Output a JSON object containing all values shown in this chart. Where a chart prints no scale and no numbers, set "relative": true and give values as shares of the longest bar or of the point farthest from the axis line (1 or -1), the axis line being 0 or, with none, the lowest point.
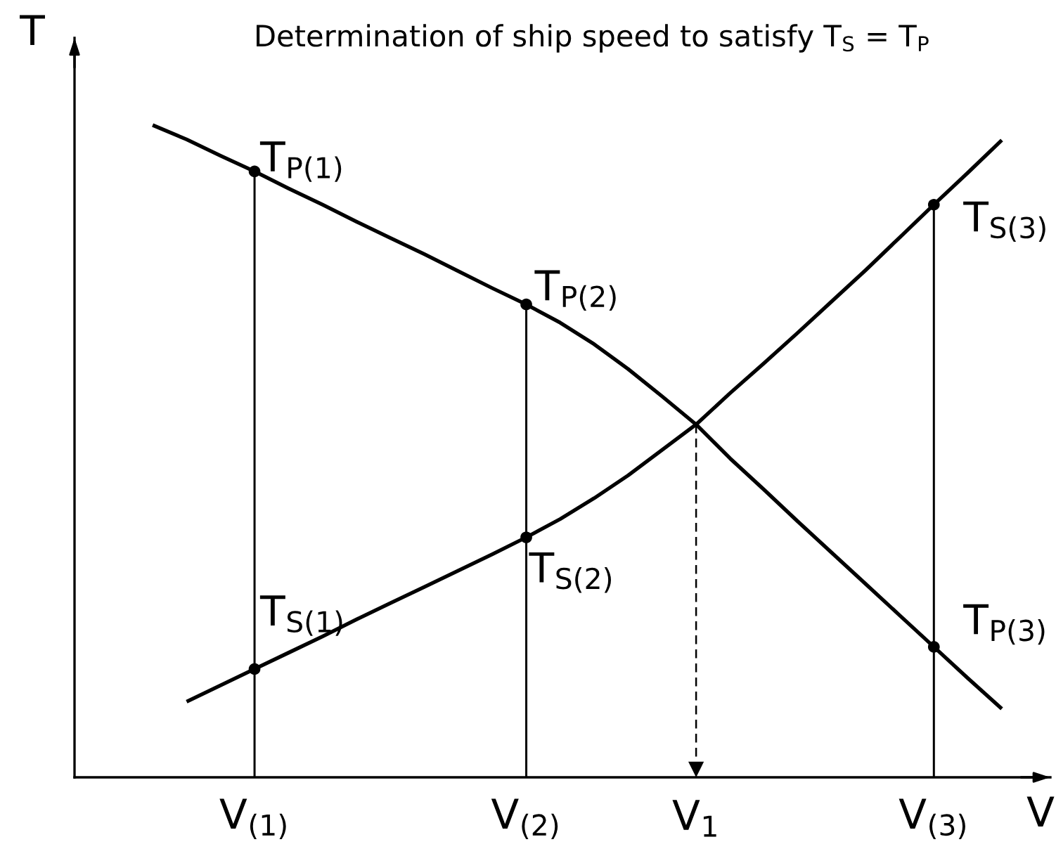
{
  "chart_data": {
    "type": "line",
    "title": "Determination of ship speed to satisfy T$_{S}$ = T$_{P}$",
    "xlabel": "V",
    "ylabel": "T",
    "relative": true,
    "tick_labels": "x",
    "categories": [
      null,
      null,
      null,
      "V$_{(1)}$",
      null,
      null,
      null,
      null,
      null,
      null,
      null,
      "V$_{(2)}$",
      null,
      null,
      null,
      null,
      "V$_{1}$",
      null,
      null,
      null,
      null,
      null,
      null,
      "V$_{(3)}$",
      null,
      null
    ],
    "series": [
      {
        "color": "#000000",
        "values": [
          1.0,
          0.978,
          0.953,
          0.929,
          0.903,
          0.878,
          0.852,
          0.827,
          0.802,
          0.776,
          0.75,
          0.725,
          0.697,
          0.664,
          0.626,
          0.584,
          0.541,
          0.489,
          0.441,
          0.392,
          0.344,
          0.296,
          0.248,
          0.2,
          0.152,
          0.105
        ]
      },
      {
        "color": "#000000",
        "values": [
          null,
          0.116,
          0.141,
          0.166,
          0.191,
          0.216,
          0.242,
          0.267,
          0.292,
          0.317,
          0.342,
          0.368,
          0.396,
          0.428,
          0.463,
          0.502,
          0.541,
          0.589,
          0.635,
          0.682,
          0.73,
          0.778,
          0.828,
          0.878,
          0.927,
          0.977
        ]
      },
      {
        "type": "lollipop",
        "color": "#000000",
        "marker": "circle",
        "values": [
          null,
          null,
          null,
          0.929,
          null,
          null,
          null,
          null,
          null,
          null,
          null,
          0.725,
          null,
          null,
          null,
          null,
          null,
          null,
          null,
          null,
          null,
          null,
          null,
          0.878,
          null,
          null
        ]
      },
      {
        "type": "line",
        "color": "#000000",
        "line_style": "dashed",
        "x": [
          "V$_{1}$",
          "V$_{1}$"
        ],
        "values": [
          0.541,
          0
        ]
      },
      {
        "type": "scatter",
        "color": "#000000",
        "marker": "circle",
        "x": [
          "V$_{(1)}$",
          "V$_{(2)}$",
          "V$_{(3)}$"
        ],
        "values": [
          0.166,
          0.368,
          0.2
        ]
      }
    ],
    "annotations": [
      {
        "text": "T$_{P(1)}$",
        "x": "V$_{(1)}$",
        "y": 0.929
      },
      {
        "text": "T$_{P(2)}$",
        "x": "V$_{(2)}$",
        "y": 0.725
      },
      {
        "text": "T$_{S(3)}$",
        "x": "V$_{(3)}$",
        "y": 0.878
      },
      {
        "text": "T$_{S(1)}$",
        "x": "V$_{(1)}$",
        "y": 0.166
      },
      {
        "text": "T$_{S(2)}$",
        "x": "V$_{(2)}$",
        "y": 0.368
      },
      {
        "text": "T$_{P(3)}$",
        "x": "V$_{(3)}$",
        "y": 0.2
      }
    ]
  }
}
